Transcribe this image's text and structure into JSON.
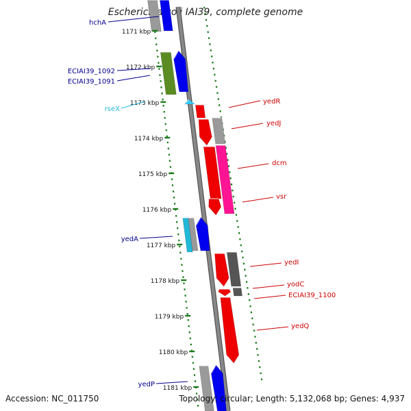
{
  "title": "Escherichia coli IAI39, complete genome",
  "footer": {
    "accession": "Accession: NC_011750",
    "topology": "Topology: circular; Length: 5,132,068 bp; Genes: 4,937"
  },
  "ticks": [
    "1171 kbp",
    "1172 kbp",
    "1173 kbp",
    "1174 kbp",
    "1175 kbp",
    "1176 kbp",
    "1177 kbp",
    "1178 kbp",
    "1179 kbp",
    "1180 kbp",
    "1181 kbp"
  ],
  "colors": {
    "blue": "#0000ee",
    "red": "#ee0000",
    "magenta": "#ff1493",
    "olive": "#5b8c24",
    "cyan": "#22b8d8",
    "light_cyan": "#33ccff",
    "gray": "#9a9a9a",
    "dark_gray": "#555555",
    "axis": "#888888",
    "green": "#1c7a1c"
  },
  "labels": {
    "left": [
      {
        "text": "hchA",
        "color": "#00008b"
      },
      {
        "text": "ECIAI39_1092",
        "color": "#00008b"
      },
      {
        "text": "ECIAI39_1091",
        "color": "#00008b"
      },
      {
        "text": "rseX",
        "color": "#22b8d8"
      },
      {
        "text": "yedA",
        "color": "#00008b"
      },
      {
        "text": "yedP",
        "color": "#00008b"
      }
    ],
    "right": [
      {
        "text": "yedR",
        "color": "#cc0000"
      },
      {
        "text": "yedJ",
        "color": "#cc0000"
      },
      {
        "text": "dcm",
        "color": "#cc0000"
      },
      {
        "text": "vsr",
        "color": "#cc0000"
      },
      {
        "text": "yedI",
        "color": "#cc0000"
      },
      {
        "text": "yodC",
        "color": "#cc0000"
      },
      {
        "text": "ECIAI39_1100",
        "color": "#cc0000"
      },
      {
        "text": "yedQ",
        "color": "#cc0000"
      }
    ]
  }
}
